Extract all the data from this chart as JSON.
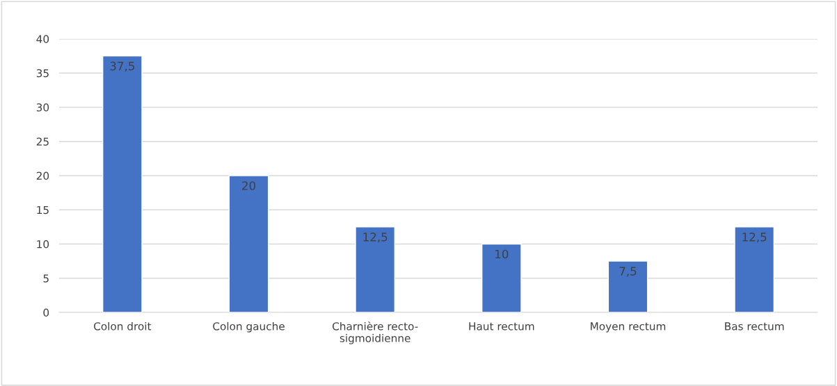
{
  "chart_data": {
    "type": "bar",
    "categories": [
      "Colon droit",
      "Colon gauche",
      "Charnière recto-\nsigmoidienne",
      "Haut rectum",
      "Moyen rectum",
      "Bas rectum"
    ],
    "values": [
      37.5,
      20,
      12.5,
      10,
      7.5,
      12.5
    ],
    "value_labels": [
      "37,5",
      "20",
      "12,5",
      "10",
      "7,5",
      "12,5"
    ],
    "color": "#4472c4",
    "ylim": [
      0,
      40
    ],
    "yticks": [
      0,
      5,
      10,
      15,
      20,
      25,
      30,
      35,
      40
    ],
    "grid": "y",
    "legend": false
  }
}
